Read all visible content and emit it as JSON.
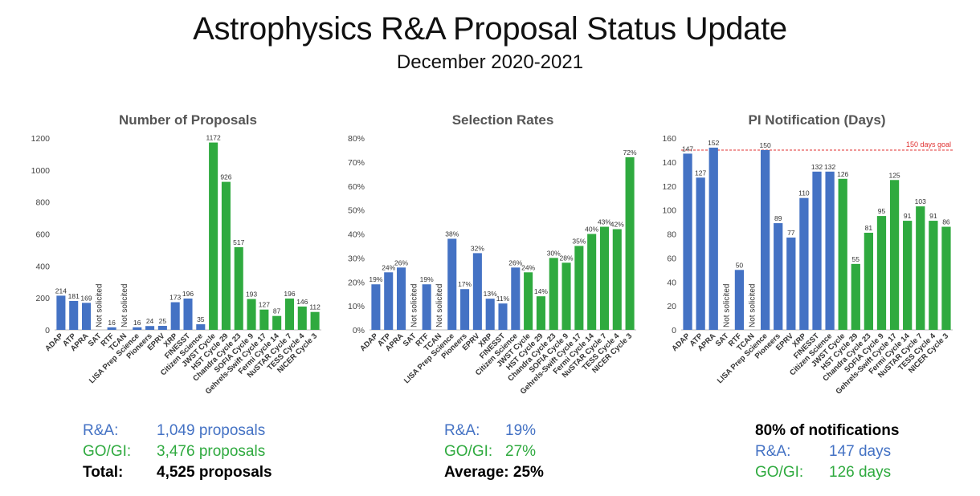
{
  "header": {
    "title": "Astrophysics R&A Proposal Status Update",
    "subtitle": "December 2020-2021"
  },
  "colors": {
    "ra": "#4472c4",
    "go": "#2faa3f",
    "goal_line": "#e03030"
  },
  "chart_data": [
    {
      "type": "bar",
      "title": "Number of Proposals",
      "categories": [
        "ADAP",
        "ATP",
        "APRA",
        "SAT",
        "RTF",
        "TCAN",
        "LISA Prep Science",
        "Pioneers",
        "EPRV",
        "XRP",
        "FINESST",
        "Citizen Science",
        "JWST Cycle",
        "HST Cycle 29",
        "Chandra Cycle 23",
        "SOFIA Cycle 9",
        "Gehrels-Swift Cycle 17",
        "Fermi Cycle 14",
        "NuSTAR Cycle 7",
        "TESS Cycle 4",
        "NICER Cycle 3"
      ],
      "values": [
        214,
        181,
        169,
        null,
        16,
        null,
        16,
        24,
        25,
        173,
        196,
        35,
        1172,
        926,
        517,
        193,
        127,
        87,
        196,
        146,
        112
      ],
      "labels": [
        "214",
        "181",
        "169",
        "Not solicited",
        "16",
        "Not solicited",
        "16",
        "24",
        "25",
        "173",
        "196",
        "35",
        "1172",
        "926",
        "517",
        "193",
        "127",
        "87",
        "196",
        "146",
        "112"
      ],
      "groups": [
        "ra",
        "ra",
        "ra",
        "ra",
        "ra",
        "ra",
        "ra",
        "ra",
        "ra",
        "ra",
        "ra",
        "ra",
        "go",
        "go",
        "go",
        "go",
        "go",
        "go",
        "go",
        "go",
        "go"
      ],
      "ylim": [
        0,
        1200
      ],
      "yticks": [
        "0",
        "200",
        "400",
        "600",
        "800",
        "1000",
        "1200"
      ],
      "grid": false
    },
    {
      "type": "bar",
      "title": "Selection Rates",
      "categories": [
        "ADAP",
        "ATP",
        "APRA",
        "SAT",
        "RTF",
        "TCAN",
        "LISA Prep Science",
        "Pioneers",
        "EPRV",
        "XRP",
        "FINESST",
        "Citizen Science",
        "JWST Cycle",
        "HST Cycle 29",
        "Chandra Cycle 23",
        "SOFIA Cycle 9",
        "Gehrels-Swift Cycle 17",
        "Fermi Cycle 14",
        "NuSTAR Cycle 7",
        "TESS Cycle 4",
        "NICER Cycle 3"
      ],
      "values": [
        19,
        24,
        26,
        null,
        19,
        null,
        38,
        17,
        32,
        13,
        11,
        26,
        24,
        14,
        30,
        28,
        35,
        40,
        43,
        42,
        72
      ],
      "labels": [
        "19%",
        "24%",
        "26%",
        "Not solicited",
        "19%",
        "Not solicited",
        "38%",
        "17%",
        "32%",
        "13%",
        "11%",
        "26%",
        "24%",
        "14%",
        "30%",
        "28%",
        "35%",
        "40%",
        "43%",
        "42%",
        "72%"
      ],
      "groups": [
        "ra",
        "ra",
        "ra",
        "ra",
        "ra",
        "ra",
        "ra",
        "ra",
        "ra",
        "ra",
        "ra",
        "ra",
        "go",
        "go",
        "go",
        "go",
        "go",
        "go",
        "go",
        "go",
        "go"
      ],
      "ylim": [
        0,
        80
      ],
      "yticks": [
        "0%",
        "10%",
        "20%",
        "30%",
        "40%",
        "50%",
        "60%",
        "70%",
        "80%"
      ],
      "grid": false
    },
    {
      "type": "bar",
      "title": "PI Notification (Days)",
      "categories": [
        "ADAP",
        "ATP",
        "APRA",
        "SAT",
        "RTF",
        "TCAN",
        "LISA Prep Science",
        "Pioneers",
        "EPRV",
        "XRP",
        "FINESST",
        "Citizen Science",
        "JWST Cycle",
        "HST Cycle 29",
        "Chandra Cycle 23",
        "SOFIA Cycle 9",
        "Gehrels-Swift Cycle 17",
        "Fermi Cycle 14",
        "NuSTAR Cycle 7",
        "TESS Cycle 4",
        "NICER Cycle 3"
      ],
      "values": [
        147,
        127,
        152,
        null,
        50,
        null,
        150,
        89,
        77,
        110,
        132,
        132,
        126,
        55,
        81,
        95,
        125,
        91,
        103,
        91,
        86
      ],
      "labels": [
        "147",
        "127",
        "152",
        "Not solicited",
        "50",
        "Not solicited",
        "150",
        "89",
        "77",
        "110",
        "132",
        "132",
        "126",
        "55",
        "81",
        "95",
        "125",
        "91",
        "103",
        "91",
        "86"
      ],
      "groups": [
        "ra",
        "ra",
        "ra",
        "ra",
        "ra",
        "ra",
        "ra",
        "ra",
        "ra",
        "ra",
        "ra",
        "ra",
        "go",
        "go",
        "go",
        "go",
        "go",
        "go",
        "go",
        "go",
        "go"
      ],
      "ylim": [
        0,
        160
      ],
      "yticks": [
        "0",
        "20",
        "40",
        "60",
        "80",
        "100",
        "120",
        "140",
        "160"
      ],
      "goal": {
        "value": 150,
        "label": "150 days goal"
      },
      "grid": false
    }
  ],
  "summaries": [
    {
      "rows": [
        {
          "label": "R&A:",
          "value": "1,049 proposals",
          "style": "blue"
        },
        {
          "label": "GO/GI:",
          "value": "3,476 proposals",
          "style": "green"
        },
        {
          "label": "Total:",
          "value": "4,525 proposals",
          "style": "black"
        }
      ]
    },
    {
      "rows": [
        {
          "label": "R&A:",
          "value": "19%",
          "style": "blue"
        },
        {
          "label": "GO/GI:",
          "value": "27%",
          "style": "green"
        },
        {
          "label": "Average:",
          "value": "25%",
          "style": "black"
        }
      ]
    },
    {
      "heading": "80% of notifications",
      "rows": [
        {
          "label": "R&A:",
          "value": "147 days",
          "style": "blue"
        },
        {
          "label": "GO/GI:",
          "value": "126 days",
          "style": "green"
        }
      ]
    }
  ]
}
